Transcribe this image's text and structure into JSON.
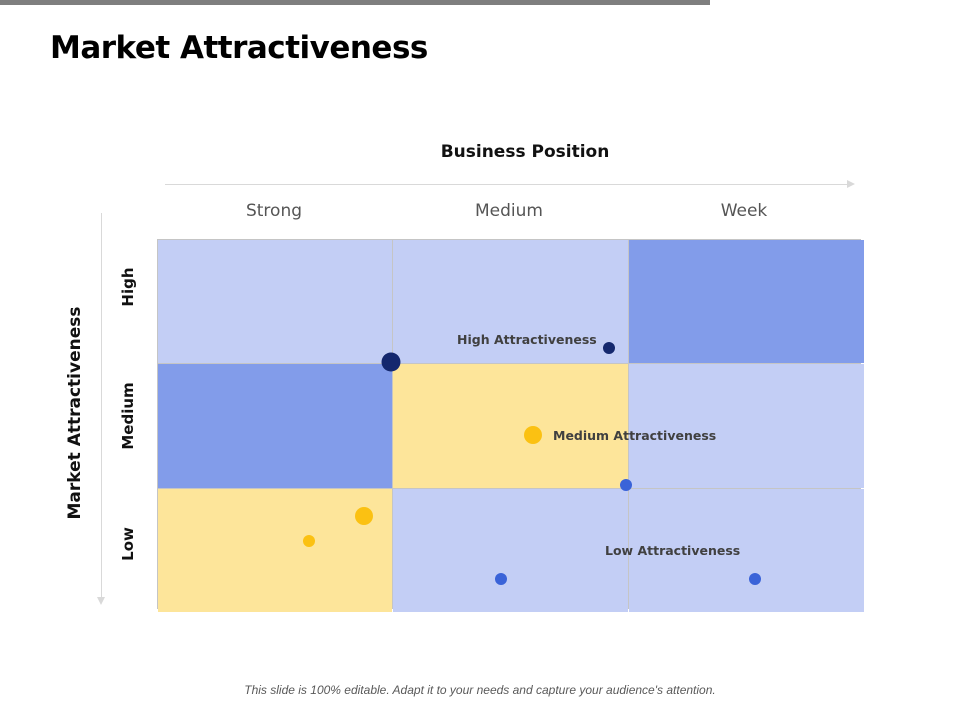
{
  "slide": {
    "title": "Market Attractiveness",
    "footer": "This slide is 100% editable. Adapt it to your needs and capture your audience's attention."
  },
  "matrix": {
    "x_axis_title": "Business Position",
    "y_axis_title": "Market Attractiveness",
    "columns": [
      "Strong",
      "Medium",
      "Week"
    ],
    "rows": [
      "High",
      "Medium",
      "Low"
    ],
    "cell_colors": [
      [
        "#c3cef5",
        "#c3cef5",
        "#829cea"
      ],
      [
        "#829cea",
        "#fde59a",
        "#c3cef5"
      ],
      [
        "#fde59a",
        "#c3cef5",
        "#c3cef5"
      ]
    ],
    "zone_labels": {
      "high": "High Attractiveness",
      "medium": "Medium Attractiveness",
      "low": "Low Attractiveness"
    }
  },
  "colors": {
    "dark_blue": "#14286e",
    "blue": "#3a63d8",
    "gold": "#fbc112",
    "light_blue": "#c3cef5",
    "mid_blue": "#829cea",
    "yellow": "#fde59a"
  }
}
